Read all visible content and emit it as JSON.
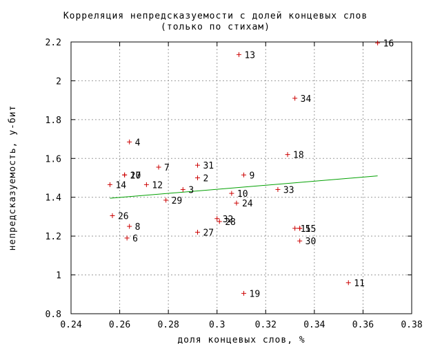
{
  "chart_data": {
    "type": "scatter",
    "title": "Корреляция непредсказуемости с долей концевых слов",
    "subtitle": "(только по стихам)",
    "xlabel": "доля концевых слов, %",
    "ylabel": "непредсказуемость, у-бит",
    "xlim": [
      0.24,
      0.38
    ],
    "ylim": [
      0.8,
      2.2
    ],
    "xticks": [
      "0.24",
      "0.26",
      "0.28",
      "0.3",
      "0.32",
      "0.34",
      "0.36",
      "0.38"
    ],
    "yticks": [
      "0.8",
      "1",
      "1.2",
      "1.4",
      "1.6",
      "1.8",
      "2",
      "2.2"
    ],
    "grid": true,
    "point_color": "#cc0000",
    "fit_color": "#00a000",
    "points": [
      {
        "label": "1",
        "x": 0.332,
        "y": 1.24
      },
      {
        "label": "2",
        "x": 0.292,
        "y": 1.5
      },
      {
        "label": "3",
        "x": 0.286,
        "y": 1.44
      },
      {
        "label": "4",
        "x": 0.264,
        "y": 1.685
      },
      {
        "label": "5",
        "x": 0.334,
        "y": 1.24
      },
      {
        "label": "6",
        "x": 0.263,
        "y": 1.19
      },
      {
        "label": "7",
        "x": 0.276,
        "y": 1.555
      },
      {
        "label": "8",
        "x": 0.264,
        "y": 1.25
      },
      {
        "label": "9",
        "x": 0.311,
        "y": 1.515
      },
      {
        "label": "10",
        "x": 0.306,
        "y": 1.42
      },
      {
        "label": "11",
        "x": 0.354,
        "y": 0.96
      },
      {
        "label": "12",
        "x": 0.271,
        "y": 1.465
      },
      {
        "label": "13",
        "x": 0.309,
        "y": 2.135
      },
      {
        "label": "14",
        "x": 0.256,
        "y": 1.465
      },
      {
        "label": "15",
        "x": 0.334,
        "y": 1.24
      },
      {
        "label": "16",
        "x": 0.366,
        "y": 2.195
      },
      {
        "label": "17",
        "x": 0.262,
        "y": 1.515
      },
      {
        "label": "18",
        "x": 0.329,
        "y": 1.62
      },
      {
        "label": "19",
        "x": 0.311,
        "y": 0.905
      },
      {
        "label": "20",
        "x": 0.262,
        "y": 1.515
      },
      {
        "label": "24",
        "x": 0.308,
        "y": 1.37
      },
      {
        "label": "26",
        "x": 0.257,
        "y": 1.305
      },
      {
        "label": "27",
        "x": 0.292,
        "y": 1.22
      },
      {
        "label": "28",
        "x": 0.301,
        "y": 1.275
      },
      {
        "label": "29",
        "x": 0.279,
        "y": 1.385
      },
      {
        "label": "30",
        "x": 0.334,
        "y": 1.175
      },
      {
        "label": "31",
        "x": 0.292,
        "y": 1.565
      },
      {
        "label": "32",
        "x": 0.3,
        "y": 1.29
      },
      {
        "label": "33",
        "x": 0.325,
        "y": 1.44
      },
      {
        "label": "34",
        "x": 0.332,
        "y": 1.91
      }
    ],
    "fit_line": {
      "x": [
        0.256,
        0.366
      ],
      "y": [
        1.395,
        1.51
      ]
    }
  }
}
